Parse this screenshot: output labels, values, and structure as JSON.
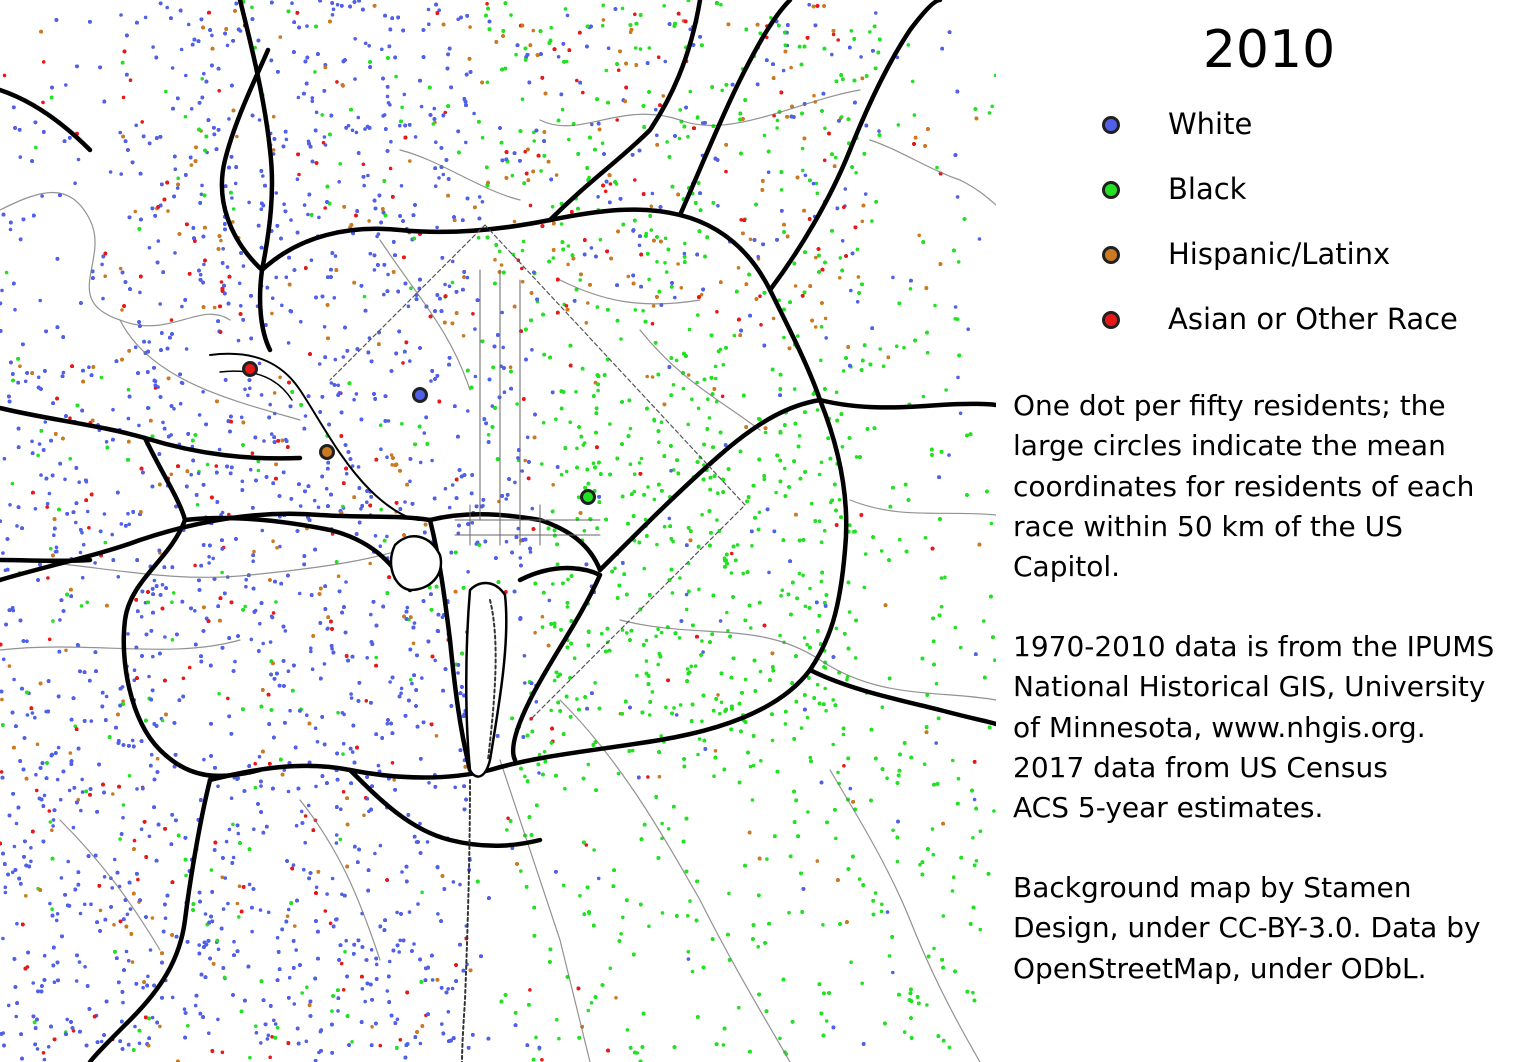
{
  "year": "2010",
  "legend": [
    {
      "label": "White",
      "color": "#5060e8",
      "icon": "blue-dot"
    },
    {
      "label": "Black",
      "color": "#22e022",
      "icon": "green-dot"
    },
    {
      "label": "Hispanic/Latinx",
      "color": "#cc7a22",
      "icon": "orange-dot"
    },
    {
      "label": "Asian or Other Race",
      "color": "#e81818",
      "icon": "red-dot"
    }
  ],
  "description_lines": [
    "One dot per fifty residents; the",
    "large circles indicate the mean",
    "coordinates for residents of each",
    "race within 50 km of the US",
    "Capitol."
  ],
  "source_lines": [
    "1970-2010 data is from the IPUMS",
    "National Historical GIS, University",
    "of Minnesota, www.nhgis.org.",
    "2017 data from US Census",
    "ACS 5-year estimates."
  ],
  "credit_lines": [
    "Background map by Stamen",
    "Design, under CC-BY-3.0. Data by",
    "OpenStreetMap, under ODbL."
  ],
  "mean_markers": [
    {
      "race": "White",
      "color": "#5060e8"
    },
    {
      "race": "Black",
      "color": "#22e022"
    },
    {
      "race": "Hispanic/Latinx",
      "color": "#cc7a22"
    },
    {
      "race": "Asian or Other Race",
      "color": "#e81818"
    }
  ]
}
